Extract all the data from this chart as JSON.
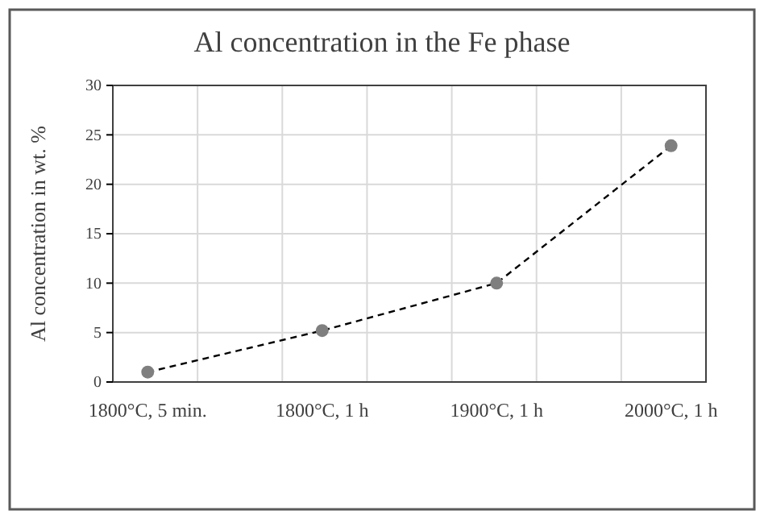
{
  "chart_data": {
    "type": "line",
    "title": "Al concentration in the Fe phase",
    "ylabel": "Al concentration in wt. %",
    "categories": [
      "1800°C, 5 min.",
      "1800°C, 1 h",
      "1900°C, 1 h",
      "2000°C, 1 h"
    ],
    "series": [
      {
        "color": "#7f7f7f",
        "values": [
          1.0,
          5.2,
          10.0,
          23.9
        ]
      }
    ],
    "ylim": [
      0,
      30
    ],
    "yticks": [
      0,
      5,
      10,
      15,
      20,
      25,
      30
    ],
    "grid": true,
    "marker": "circle",
    "line_style": "dashed"
  }
}
